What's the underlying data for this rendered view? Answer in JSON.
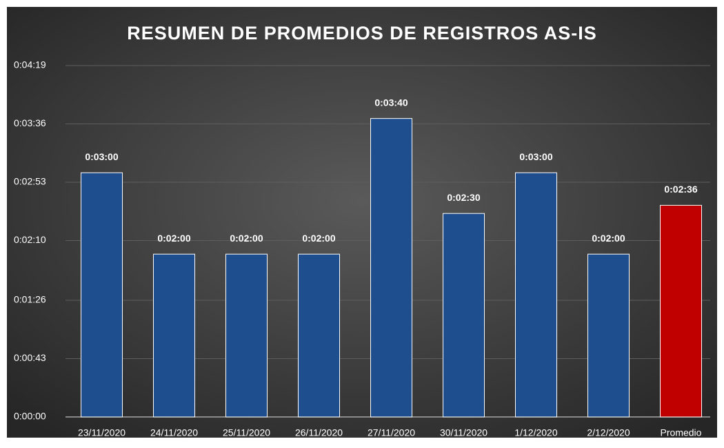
{
  "chart_data": {
    "type": "bar",
    "title": "RESUMEN DE PROMEDIOS DE REGISTROS AS-IS",
    "categories": [
      "23/11/2020",
      "24/11/2020",
      "25/11/2020",
      "26/11/2020",
      "27/11/2020",
      "30/11/2020",
      "1/12/2020",
      "2/12/2020",
      "Promedio"
    ],
    "values": [
      180,
      120,
      120,
      120,
      220,
      150,
      180,
      120,
      156
    ],
    "value_labels": [
      "0:03:00",
      "0:02:00",
      "0:02:00",
      "0:02:00",
      "0:03:40",
      "0:02:30",
      "0:03:00",
      "0:02:00",
      "0:02:36"
    ],
    "colors": [
      "#1f4e8f",
      "#1f4e8f",
      "#1f4e8f",
      "#1f4e8f",
      "#1f4e8f",
      "#1f4e8f",
      "#1f4e8f",
      "#1f4e8f",
      "#c00000"
    ],
    "ylim": [
      0,
      259
    ],
    "yticks": [
      {
        "value": 0,
        "label": "0:00:00"
      },
      {
        "value": 43,
        "label": "0:00:43"
      },
      {
        "value": 86,
        "label": "0:01:26"
      },
      {
        "value": 130,
        "label": "0:02:10"
      },
      {
        "value": 173,
        "label": "0:02:53"
      },
      {
        "value": 216,
        "label": "0:03:36"
      },
      {
        "value": 259,
        "label": "0:04:19"
      }
    ],
    "grid": true
  }
}
